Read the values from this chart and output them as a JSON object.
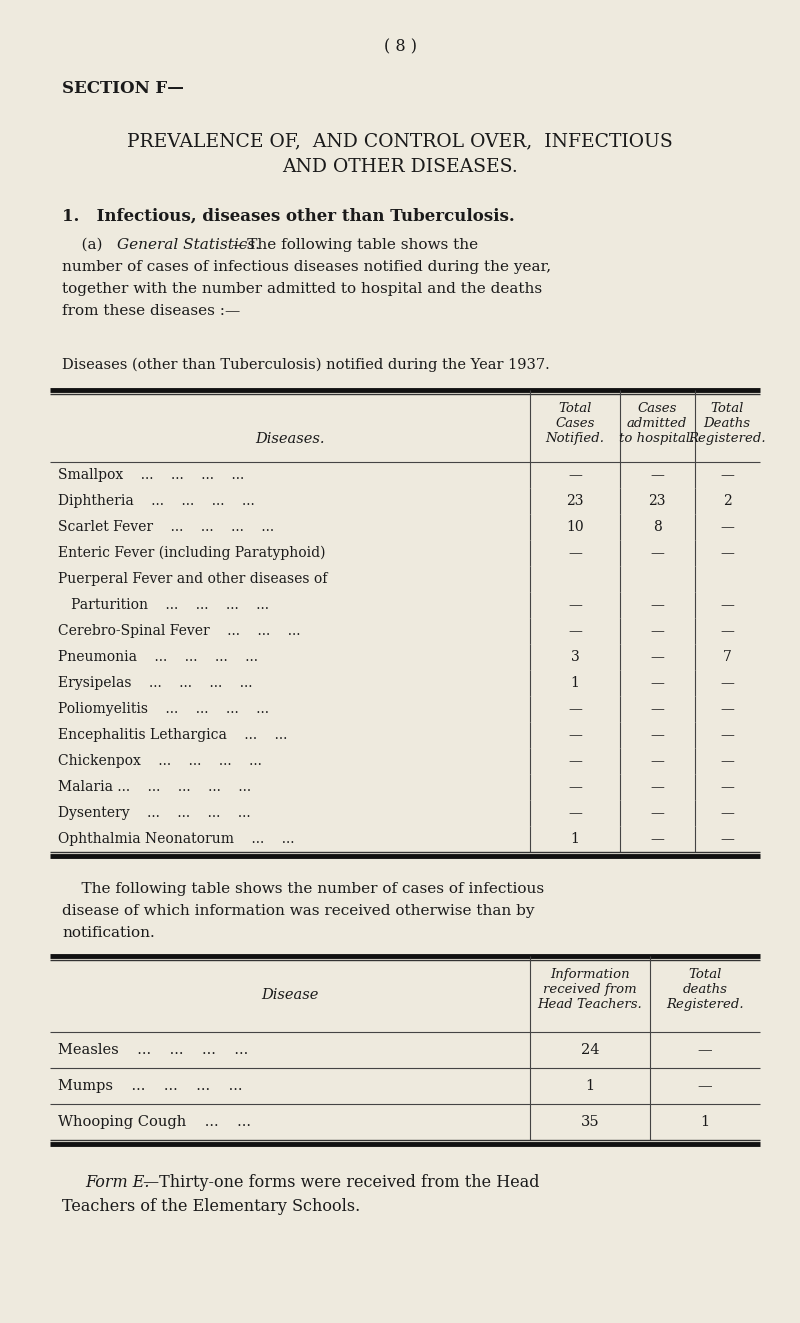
{
  "bg_color": "#eeeade",
  "page_number": "( 8 )",
  "section_header": "SECTION F—",
  "main_title_line1": "PREVALENCE OF,  AND CONTROL OVER,  INFECTIOUS",
  "main_title_line2": "AND OTHER DISEASES.",
  "subtitle1": "1.   Infectious, diseases other than Tuberculosis.",
  "para1_line1": "    (a)  General Statistics.—The following table shows the",
  "para1_italic": "General Statistics.",
  "para1_prefix": "    (a)  ",
  "para1_suffix": "—The following table shows the",
  "para1_line2": "number of cases of infectious diseases notified during the year,",
  "para1_line3": "together with the number admitted to hospital and the deaths",
  "para1_line4": "from these diseases :—",
  "table1_caption": "Diseases (other than Tuberculosis) notified during the Year 1937.",
  "table1_rows": [
    [
      "Smallpox    ...    ...    ...    ...",
      "—",
      "—",
      "—"
    ],
    [
      "Diphtheria    ...    ...    ...    ...",
      "23",
      "23",
      "2"
    ],
    [
      "Scarlet Fever    ...    ...    ...    ...",
      "10",
      "8",
      "—"
    ],
    [
      "Enteric Fever (including Paratyphoid)",
      "—",
      "—",
      "—"
    ],
    [
      "Puerperal Fever and other diseases of",
      "",
      "",
      ""
    ],
    [
      "   Parturition    ...    ...    ...    ...",
      "—",
      "—",
      "—"
    ],
    [
      "Cerebro-Spinal Fever    ...    ...    ...",
      "—",
      "—",
      "—"
    ],
    [
      "Pneumonia    ...    ...    ...    ...",
      "3",
      "—",
      "7"
    ],
    [
      "Erysipelas    ...    ...    ...    ...",
      "1",
      "—",
      "—"
    ],
    [
      "Poliomyelitis    ...    ...    ...    ...",
      "—",
      "—",
      "—"
    ],
    [
      "Encephalitis Lethargica    ...    ...",
      "—",
      "—",
      "—"
    ],
    [
      "Chickenpox    ...    ...    ...    ...",
      "—",
      "—",
      "—"
    ],
    [
      "Malaria ...    ...    ...    ...    ...",
      "—",
      "—",
      "—"
    ],
    [
      "Dysentery    ...    ...    ...    ...",
      "—",
      "—",
      "—"
    ],
    [
      "Ophthalmia Neonatorum    ...    ...",
      "1",
      "—",
      "—"
    ]
  ],
  "para2_line1": "    The following table shows the number of cases of infectious",
  "para2_line2": "disease of which information was received otherwise than by",
  "para2_line3": "notification.",
  "table2_rows": [
    [
      "Measles    ...    ...    ...    ...",
      "24",
      "—"
    ],
    [
      "Mumps    ...    ...    ...    ...",
      "1",
      "—"
    ],
    [
      "Whooping Cough    ...    ...",
      "35",
      "1"
    ]
  ],
  "footer_italic": "Form E.",
  "footer_rest": "—Thirty-one forms were received from the Head",
  "footer_line2": "Teachers of the Elementary Schools."
}
